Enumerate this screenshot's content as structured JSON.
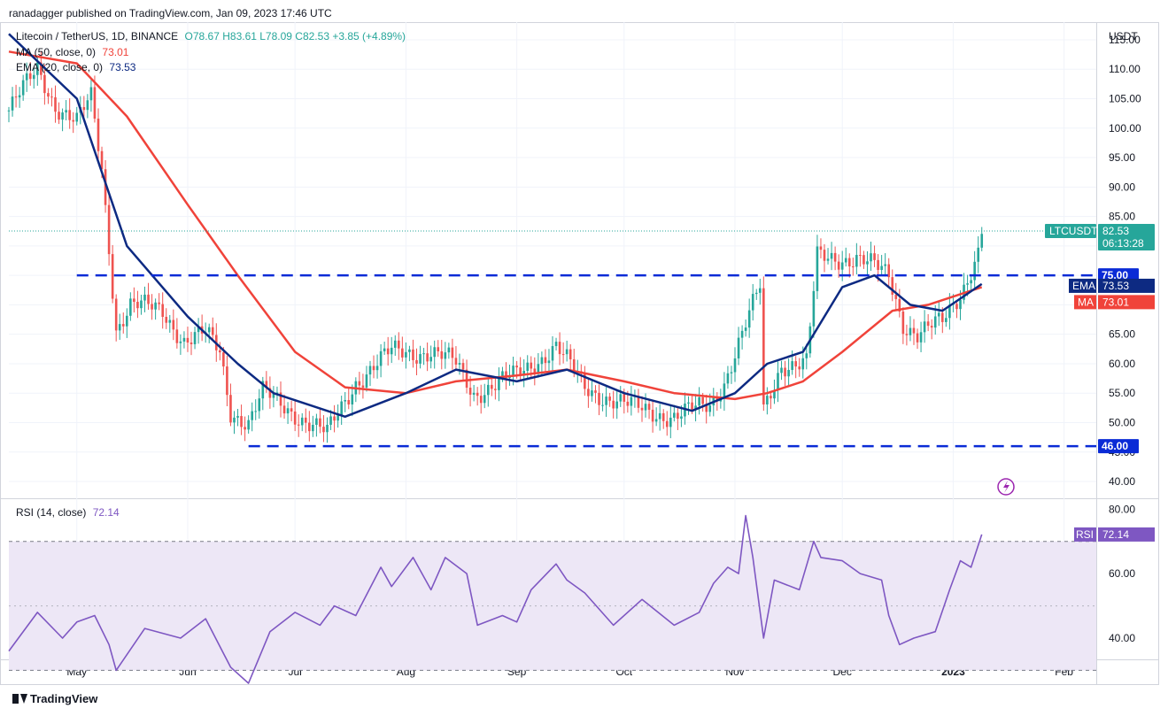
{
  "header": {
    "published_by": "ranadagger published on TradingView.com, Jan 09, 2023 17:46 UTC"
  },
  "legend": {
    "symbol": "Litecoin / TetherUS, 1D, BINANCE",
    "ohlc": "O78.67 H83.61 L78.09 C82.53 +3.85 (+4.89%)",
    "ma_label": "MA (50, close, 0)",
    "ma_value": "73.01",
    "ema_label": "EMA (20, close, 0)",
    "ema_value": "73.53",
    "rsi_label": "RSI (14, close)",
    "rsi_value": "72.14"
  },
  "footer": {
    "brand": "TradingView"
  },
  "colors": {
    "up": "#26a69a",
    "down": "#ef5350",
    "ema": "#0d2a82",
    "ma": "#f0433a",
    "level": "#0a2bd6",
    "rsi": "#7e57c2",
    "rsi_band": "#ede7f6",
    "price_tag": "#26a69a"
  },
  "icons": {
    "replay": "lightning-circle-icon"
  },
  "chart_data": [
    {
      "type": "candlestick",
      "title": "Litecoin / TetherUS, 1D, BINANCE",
      "y_unit": "USDT",
      "ylim": [
        37,
        118
      ],
      "y_ticks": [
        40,
        45,
        50,
        55,
        60,
        65,
        70,
        75,
        80,
        85,
        90,
        95,
        100,
        105,
        110,
        115
      ],
      "y_tick_labels": [
        "40.00",
        "45.00",
        "50.00",
        "55.00",
        "60.00",
        "65.00",
        "70.00",
        "75.00",
        "80.00",
        "85.00",
        "90.00",
        "95.00",
        "100.00",
        "105.00",
        "110.00",
        "115.00"
      ],
      "x_tick_labels": [
        "May",
        "Jun",
        "Jul",
        "Aug",
        "Sep",
        "Oct",
        "Nov",
        "Dec",
        "2023",
        "Feb"
      ],
      "x_tick_dates": [
        "2022-05-01",
        "2022-06-01",
        "2022-07-01",
        "2022-08-01",
        "2022-09-01",
        "2022-10-01",
        "2022-11-01",
        "2022-12-01",
        "2023-01-01",
        "2023-02-01"
      ],
      "x_range": [
        "2022-04-12",
        "2023-02-10"
      ],
      "close_anchors": {
        "dates": [
          "2022-04-12",
          "2022-04-20",
          "2022-04-25",
          "2022-05-01",
          "2022-05-05",
          "2022-05-08",
          "2022-05-10",
          "2022-05-12",
          "2022-05-16",
          "2022-05-25",
          "2022-05-31",
          "2022-06-06",
          "2022-06-10",
          "2022-06-13",
          "2022-06-18",
          "2022-06-22",
          "2022-06-30",
          "2022-07-10",
          "2022-07-18",
          "2022-07-28",
          "2022-08-08",
          "2022-08-15",
          "2022-08-20",
          "2022-09-01",
          "2022-09-12",
          "2022-09-20",
          "2022-10-01",
          "2022-10-15",
          "2022-10-25",
          "2022-10-29",
          "2022-11-05",
          "2022-11-08",
          "2022-11-09",
          "2022-11-14",
          "2022-11-21",
          "2022-11-24",
          "2022-12-01",
          "2022-12-05",
          "2022-12-14",
          "2022-12-18",
          "2022-12-22",
          "2022-12-29",
          "2023-01-03",
          "2023-01-08",
          "2023-01-09"
        ],
        "values": [
          103,
          110,
          104,
          101,
          105,
          93,
          80,
          66,
          70,
          69,
          64,
          65,
          62,
          52,
          50,
          55,
          52,
          48,
          57,
          62,
          62,
          60,
          55,
          58,
          63,
          56,
          53,
          51,
          53,
          57,
          68,
          73,
          52,
          60,
          60,
          78,
          78,
          78,
          75,
          67,
          65,
          67,
          72,
          79,
          82.53
        ]
      },
      "series": [
        {
          "name": "EMA (20, close, 0)",
          "last_value": 73.53,
          "dates": [
            "2022-04-12",
            "2022-05-01",
            "2022-05-15",
            "2022-06-01",
            "2022-06-15",
            "2022-06-25",
            "2022-07-15",
            "2022-08-01",
            "2022-08-15",
            "2022-09-01",
            "2022-09-15",
            "2022-10-01",
            "2022-10-20",
            "2022-11-01",
            "2022-11-10",
            "2022-11-20",
            "2022-12-01",
            "2022-12-10",
            "2022-12-20",
            "2022-12-29",
            "2023-01-09"
          ],
          "values": [
            116,
            105,
            80,
            68,
            60,
            55,
            51,
            55,
            59,
            57,
            59,
            55,
            52,
            55,
            60,
            62,
            73,
            75,
            70,
            69,
            73.53
          ]
        },
        {
          "name": "MA (50, close, 0)",
          "last_value": 73.01,
          "dates": [
            "2022-04-12",
            "2022-05-01",
            "2022-05-15",
            "2022-06-01",
            "2022-06-15",
            "2022-07-01",
            "2022-07-15",
            "2022-08-01",
            "2022-08-15",
            "2022-09-01",
            "2022-09-15",
            "2022-10-01",
            "2022-10-15",
            "2022-11-01",
            "2022-11-10",
            "2022-11-20",
            "2022-12-01",
            "2022-12-15",
            "2022-12-25",
            "2023-01-09"
          ],
          "values": [
            113,
            111,
            102,
            87,
            75,
            62,
            56,
            55,
            57,
            58,
            59,
            57,
            55,
            54,
            55,
            57,
            62,
            69,
            70,
            73.01
          ]
        }
      ],
      "levels": [
        {
          "value": 75,
          "label": "75.00",
          "from": "2022-05-01"
        },
        {
          "value": 46,
          "label": "46.00",
          "from": "2022-06-18"
        }
      ],
      "price_tags": [
        {
          "label": "LTCUSDT",
          "value": "82.53",
          "countdown": "06:13:28"
        },
        {
          "label": "EMA",
          "value": "73.53"
        },
        {
          "label": "MA",
          "value": "73.01"
        }
      ]
    },
    {
      "type": "line",
      "title": "RSI (14, close)",
      "ylim": [
        26,
        82
      ],
      "y_ticks": [
        40,
        60,
        80
      ],
      "y_tick_labels": [
        "40.00",
        "60.00",
        "80.00"
      ],
      "band": [
        30,
        70
      ],
      "mid": 50,
      "series": [
        {
          "name": "RSI (14, close)",
          "last_value": 72.14,
          "dates": [
            "2022-04-12",
            "2022-04-20",
            "2022-04-27",
            "2022-05-01",
            "2022-05-06",
            "2022-05-10",
            "2022-05-12",
            "2022-05-20",
            "2022-05-30",
            "2022-06-06",
            "2022-06-13",
            "2022-06-18",
            "2022-06-24",
            "2022-07-01",
            "2022-07-08",
            "2022-07-12",
            "2022-07-18",
            "2022-07-25",
            "2022-07-28",
            "2022-08-03",
            "2022-08-08",
            "2022-08-12",
            "2022-08-18",
            "2022-08-21",
            "2022-08-28",
            "2022-09-01",
            "2022-09-05",
            "2022-09-12",
            "2022-09-15",
            "2022-09-20",
            "2022-09-28",
            "2022-10-06",
            "2022-10-15",
            "2022-10-22",
            "2022-10-26",
            "2022-10-30",
            "2022-11-02",
            "2022-11-04",
            "2022-11-06",
            "2022-11-09",
            "2022-11-12",
            "2022-11-19",
            "2022-11-23",
            "2022-11-25",
            "2022-12-01",
            "2022-12-06",
            "2022-12-12",
            "2022-12-14",
            "2022-12-17",
            "2022-12-21",
            "2022-12-27",
            "2022-12-31",
            "2023-01-03",
            "2023-01-06",
            "2023-01-09"
          ],
          "values": [
            36,
            48,
            40,
            45,
            47,
            38,
            30,
            43,
            40,
            46,
            31,
            26,
            42,
            48,
            44,
            50,
            47,
            62,
            56,
            65,
            55,
            65,
            60,
            44,
            47,
            45,
            55,
            63,
            58,
            54,
            44,
            52,
            44,
            48,
            57,
            62,
            60,
            78,
            65,
            40,
            58,
            55,
            70,
            65,
            64,
            60,
            58,
            47,
            38,
            40,
            42,
            55,
            64,
            62,
            72.14
          ]
        }
      ]
    }
  ]
}
